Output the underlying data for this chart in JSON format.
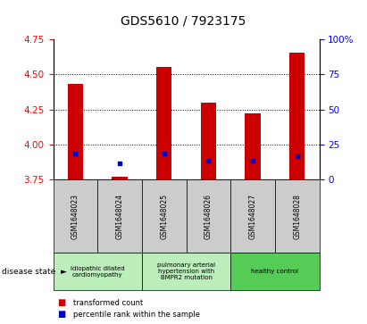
{
  "title": "GDS5610 / 7923175",
  "samples": [
    "GSM1648023",
    "GSM1648024",
    "GSM1648025",
    "GSM1648026",
    "GSM1648027",
    "GSM1648028"
  ],
  "red_values": [
    4.43,
    3.77,
    4.55,
    4.3,
    4.22,
    4.65
  ],
  "blue_values": [
    3.935,
    3.865,
    3.935,
    3.885,
    3.885,
    3.915
  ],
  "ylim_left": [
    3.75,
    4.75
  ],
  "ylim_right": [
    0,
    100
  ],
  "yticks_left": [
    3.75,
    4.0,
    4.25,
    4.5,
    4.75
  ],
  "yticks_right": [
    0,
    25,
    50,
    75,
    100
  ],
  "ytick_labels_right": [
    "0",
    "25",
    "50",
    "75",
    "100%"
  ],
  "baseline": 3.75,
  "bar_width": 0.35,
  "red_color": "#cc0000",
  "blue_color": "#0000cc",
  "disease_groups": [
    {
      "n": 2,
      "label": "idiopathic dilated\ncardiomyopathy",
      "bg": "#bbeebb"
    },
    {
      "n": 2,
      "label": "pulmonary arterial\nhypertension with\nBMPR2 mutation",
      "bg": "#bbeebb"
    },
    {
      "n": 2,
      "label": "healthy control",
      "bg": "#55cc55"
    }
  ],
  "disease_state_label": "disease state",
  "legend_red": "transformed count",
  "legend_blue": "percentile rank within the sample",
  "sample_box_bg": "#cccccc",
  "title_fontsize": 10,
  "tick_fontsize": 7.5
}
